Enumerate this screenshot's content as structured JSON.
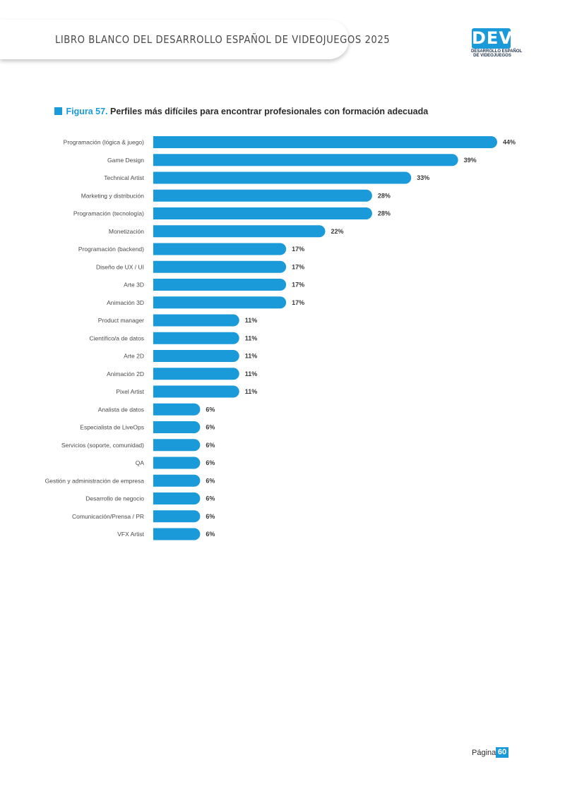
{
  "header": {
    "title": "LIBRO BLANCO DEL DESARROLLO ESPAÑOL DE VIDEOJUEGOS 2025",
    "logo_mark": "DEV",
    "logo_line1": "DESARROLLO ESPAÑOL",
    "logo_line2": "DE VIDEOJUEGOS"
  },
  "figure": {
    "number": "Figura 57.",
    "title": "Perfiles más difíciles para encontrar profesionales con formación adecuada"
  },
  "footer": {
    "page_label": "Página",
    "page_number": "60"
  },
  "colors": {
    "accent": "#1a9ad9"
  },
  "chart_data": {
    "type": "bar",
    "orientation": "horizontal",
    "categories": [
      "Programación (lógica & juego)",
      "Game Design",
      "Technical Artist",
      "Marketing y distribución",
      "Programación (tecnología)",
      "Monetización",
      "Programación (backend)",
      "Diseño de UX / UI",
      "Arte 3D",
      "Animación 3D",
      "Product manager",
      "Científico/a de datos",
      "Arte 2D",
      "Animación 2D",
      "Pixel Artist",
      "Analista de datos",
      "Especialista de LiveOps",
      "Servicios (soporte, comunidad)",
      "QA",
      "Gestión y administración de empresa",
      "Desarrollo de negocio",
      "Comunicación/Prensa / PR",
      "VFX Artist"
    ],
    "values": [
      44,
      39,
      33,
      28,
      28,
      22,
      17,
      17,
      17,
      17,
      11,
      11,
      11,
      11,
      11,
      6,
      6,
      6,
      6,
      6,
      6,
      6,
      6
    ],
    "value_labels": [
      "44%",
      "39%",
      "33%",
      "28%",
      "28%",
      "22%",
      "17%",
      "17%",
      "17%",
      "17%",
      "11%",
      "11%",
      "11%",
      "11%",
      "11%",
      "6%",
      "6%",
      "6%",
      "6%",
      "6%",
      "6%",
      "6%",
      "6%"
    ],
    "unit": "%",
    "xlim": [
      0,
      44
    ],
    "grid": false,
    "legend": "none"
  }
}
